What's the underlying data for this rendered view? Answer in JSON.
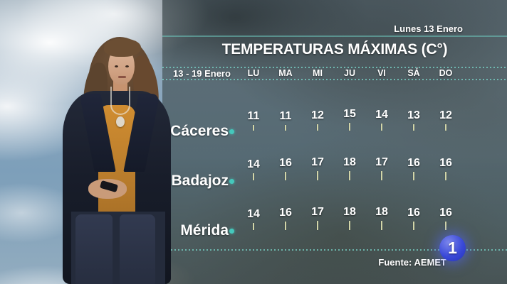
{
  "header": {
    "date_badge": "Lunes 13 Enero",
    "title": "TEMPERATURAS MÁXIMAS (C°)",
    "week_range": "13 - 19 Enero",
    "days": [
      "LU",
      "MA",
      "MI",
      "JU",
      "VI",
      "SÁ",
      "DO"
    ]
  },
  "chart_data": {
    "type": "table",
    "title": "TEMPERATURAS MÁXIMAS (C°)",
    "period": "13 - 19 Enero",
    "categories": [
      "LU",
      "MA",
      "MI",
      "JU",
      "VI",
      "SÁ",
      "DO"
    ],
    "series": [
      {
        "name": "Cáceres",
        "values": [
          11,
          11,
          12,
          15,
          14,
          13,
          12
        ]
      },
      {
        "name": "Badajoz",
        "values": [
          14,
          16,
          17,
          18,
          17,
          16,
          16
        ]
      },
      {
        "name": "Mérida",
        "values": [
          14,
          16,
          17,
          18,
          18,
          16,
          16
        ]
      }
    ],
    "unit": "C°",
    "legend_position": "none",
    "grid": "dotted-horizontal-rules"
  },
  "footer": {
    "source": "Fuente: AEMET"
  },
  "logo": {
    "text": "1",
    "channel": "la-1-tve"
  },
  "colors": {
    "accent_teal": "#45c8bc",
    "tick_khaki": "#d2d5a8",
    "logo_blue": "#3a49d8",
    "panel_overlay": "#33423d",
    "text": "#ffffff"
  }
}
